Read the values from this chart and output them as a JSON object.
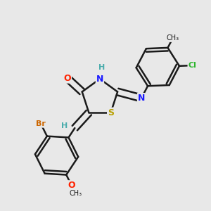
{
  "bg_color": "#e8e8e8",
  "bond_color": "#1a1a1a",
  "bond_width": 1.8,
  "atoms": {
    "S": {
      "color": "#b8a000",
      "fontsize": 9
    },
    "N": {
      "color": "#1a1aff",
      "fontsize": 9
    },
    "O": {
      "color": "#ff2200",
      "fontsize": 9
    },
    "Br": {
      "color": "#cc6600",
      "fontsize": 8
    },
    "Cl": {
      "color": "#2db52d",
      "fontsize": 8
    },
    "H": {
      "color": "#4aacac",
      "fontsize": 8
    }
  }
}
